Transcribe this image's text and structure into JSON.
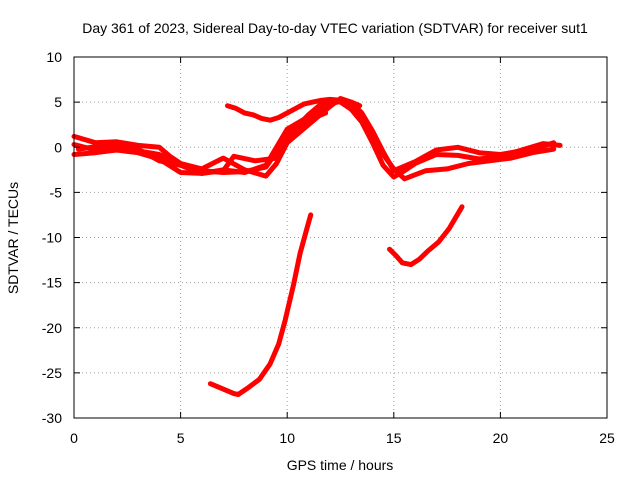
{
  "chart_data": {
    "type": "line",
    "title": "Day 361 of 2023, Sidereal Day-to-day VTEC variation (SDTVAR) for receiver sut1",
    "xlabel": "GPS time / hours",
    "ylabel": "SDTVAR / TECUs",
    "xlim": [
      0,
      25
    ],
    "ylim": [
      -30,
      10
    ],
    "xticks": [
      0,
      5,
      10,
      15,
      20,
      25
    ],
    "yticks": [
      -30,
      -25,
      -20,
      -15,
      -10,
      -5,
      0,
      5,
      10
    ],
    "xtick_labels": [
      "0",
      "5",
      "10",
      "15",
      "20",
      "25"
    ],
    "ytick_labels": [
      "-30",
      "-25",
      "-20",
      "-15",
      "-10",
      "-5",
      "0",
      "5",
      "10"
    ],
    "grid": true,
    "color": "#ff0000",
    "series": [
      {
        "name": "track-1",
        "x": [
          0,
          1,
          2,
          3,
          4,
          4.5,
          5,
          5.5,
          6,
          7,
          8,
          9,
          9.5,
          10,
          10.5,
          11,
          11.5,
          12,
          12.5,
          13,
          13.5,
          14,
          14.5,
          15,
          15.5,
          16,
          17,
          18,
          19,
          20,
          21,
          22,
          22.8
        ],
        "y": [
          1.2,
          0.5,
          0.6,
          0.2,
          0.0,
          -1.0,
          -1.8,
          -2.3,
          -2.6,
          -2.8,
          -2.7,
          -2.2,
          -0.5,
          1.2,
          2.4,
          3.6,
          4.6,
          5.2,
          5.0,
          4.2,
          2.8,
          0.5,
          -2.0,
          -3.3,
          -2.6,
          -1.8,
          -0.8,
          -0.9,
          -1.3,
          -1.0,
          -0.3,
          0.4,
          0.2
        ]
      },
      {
        "name": "track-2",
        "x": [
          0,
          1,
          2,
          3,
          4,
          5,
          6,
          7,
          8,
          9,
          9.5,
          10,
          11,
          12,
          12.5,
          13,
          13.5,
          14,
          14.5,
          15,
          16,
          17,
          18,
          19,
          20,
          21,
          22,
          22.5
        ],
        "y": [
          0.3,
          -0.3,
          -0.1,
          -0.4,
          -0.8,
          -1.8,
          -2.4,
          -1.2,
          -2.5,
          -3.2,
          -1.8,
          0.5,
          2.5,
          4.5,
          5.4,
          5.0,
          3.8,
          1.8,
          -0.5,
          -2.6,
          -1.6,
          -0.3,
          0.0,
          -0.6,
          -0.8,
          -0.4,
          0.1,
          0.5
        ]
      },
      {
        "name": "track-3",
        "x": [
          0,
          1,
          2,
          3,
          4,
          5,
          6,
          7,
          7.5,
          8.5,
          9.5,
          10.2,
          11,
          11.8
        ],
        "y": [
          -0.8,
          -0.6,
          -0.3,
          -0.6,
          -1.3,
          -2.8,
          -2.9,
          -2.6,
          -1.0,
          -1.5,
          -1.2,
          1.3,
          3.0,
          3.8
        ]
      },
      {
        "name": "track-4",
        "x": [
          0.2,
          1.5,
          3,
          4,
          5,
          6,
          7,
          8,
          9,
          10,
          11,
          12,
          12.5,
          13,
          13.5,
          14,
          14.5,
          15,
          15.5,
          16.5,
          17.5,
          18.5,
          19.5,
          20.5,
          21.5,
          22.5
        ],
        "y": [
          -0.2,
          0.2,
          -0.2,
          -1.5,
          -2.0,
          -2.9,
          -2.5,
          -2.8,
          -2.0,
          2.0,
          3.4,
          4.8,
          5.1,
          4.6,
          3.2,
          1.2,
          -0.8,
          -2.4,
          -3.5,
          -2.6,
          -2.4,
          -1.8,
          -1.5,
          -1.2,
          -0.6,
          -0.2
        ]
      },
      {
        "name": "track-5",
        "x": [
          7.2,
          7.6,
          8,
          8.4,
          8.8,
          9.2,
          9.6,
          10,
          10.4,
          10.8,
          11.2,
          11.6,
          12,
          12.5,
          13,
          13.4
        ],
        "y": [
          4.6,
          4.3,
          3.8,
          3.6,
          3.2,
          3.0,
          3.3,
          3.8,
          4.3,
          4.8,
          5.0,
          5.2,
          5.3,
          5.2,
          5.0,
          4.6
        ]
      },
      {
        "name": "track-6",
        "x": [
          6.4,
          7,
          7.5,
          7.7,
          8.2,
          8.7,
          9.2,
          9.6,
          9.9,
          10.3,
          10.6,
          10.9,
          11.1
        ],
        "y": [
          -26.2,
          -26.8,
          -27.3,
          -27.4,
          -26.6,
          -25.7,
          -24.0,
          -21.8,
          -19.2,
          -15.2,
          -11.8,
          -9.2,
          -7.5
        ]
      },
      {
        "name": "track-7",
        "x": [
          14.8,
          15.1,
          15.4,
          15.8,
          16.2,
          16.6,
          17.1,
          17.6,
          18.2
        ],
        "y": [
          -11.3,
          -12.0,
          -12.8,
          -13.0,
          -12.4,
          -11.5,
          -10.5,
          -9.0,
          -6.6
        ]
      }
    ]
  }
}
